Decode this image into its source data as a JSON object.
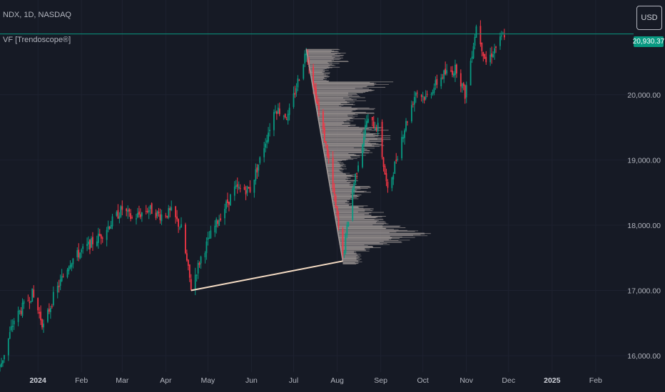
{
  "header": {
    "symbol_line": "NDX, 1D, NASDAQ",
    "indicator_line": "VF [Trendoscope®]"
  },
  "currency_button": "USD",
  "last_price_label": "20,930.37",
  "colors": {
    "background": "#161a25",
    "grid": "#1e2230",
    "up": "#089981",
    "down": "#f23645",
    "profile": "#a59d9b",
    "trend_line": "#f5dcc4",
    "last_price_line": "#089981",
    "axis_text": "#b2b5be"
  },
  "chart_data": {
    "type": "candlestick",
    "title": "NDX, 1D, NASDAQ",
    "y_axis": {
      "side": "right",
      "ticks": [
        "16,000.00",
        "17,000.00",
        "18,000.00",
        "19,000.00",
        "20,000.00"
      ],
      "tick_values": [
        16000,
        17000,
        18000,
        19000,
        20000
      ],
      "range": [
        15750,
        21450
      ]
    },
    "x_axis": {
      "ticks": [
        "2024",
        "Feb",
        "Mar",
        "Apr",
        "May",
        "Jun",
        "Jul",
        "Aug",
        "Sep",
        "Oct",
        "Nov",
        "Dec",
        "2025",
        "Feb"
      ],
      "tick_dates": [
        "2024-01-01",
        "2024-02-01",
        "2024-03-01",
        "2024-04-01",
        "2024-05-01",
        "2024-06-01",
        "2024-07-01",
        "2024-08-01",
        "2024-09-01",
        "2024-10-01",
        "2024-11-01",
        "2024-12-01",
        "2025-01-01",
        "2025-02-01"
      ],
      "range": [
        "2023-12-05",
        "2025-02-28"
      ]
    },
    "grid": true,
    "last_price": 20930.37,
    "price_path": [
      [
        "2023-12-05",
        15820
      ],
      [
        "2023-12-15",
        16550
      ],
      [
        "2023-12-28",
        16950
      ],
      [
        "2024-01-05",
        16450
      ],
      [
        "2024-01-12",
        16900
      ],
      [
        "2024-01-24",
        17450
      ],
      [
        "2024-02-01",
        17600
      ],
      [
        "2024-02-15",
        17850
      ],
      [
        "2024-03-01",
        18250
      ],
      [
        "2024-03-08",
        18100
      ],
      [
        "2024-03-20",
        18250
      ],
      [
        "2024-03-28",
        18150
      ],
      [
        "2024-04-05",
        18200
      ],
      [
        "2024-04-12",
        17950
      ],
      [
        "2024-04-19",
        17050
      ],
      [
        "2024-04-26",
        17500
      ],
      [
        "2024-05-03",
        17850
      ],
      [
        "2024-05-10",
        18150
      ],
      [
        "2024-05-20",
        18550
      ],
      [
        "2024-05-31",
        18550
      ],
      [
        "2024-06-07",
        19000
      ],
      [
        "2024-06-18",
        19800
      ],
      [
        "2024-06-27",
        19650
      ],
      [
        "2024-07-10",
        20680
      ],
      [
        "2024-07-18",
        19850
      ],
      [
        "2024-07-26",
        19000
      ],
      [
        "2024-08-05",
        17500
      ],
      [
        "2024-08-12",
        18550
      ],
      [
        "2024-08-22",
        19600
      ],
      [
        "2024-08-30",
        19500
      ],
      [
        "2024-09-06",
        18500
      ],
      [
        "2024-09-16",
        19350
      ],
      [
        "2024-09-26",
        20050
      ],
      [
        "2024-10-03",
        19950
      ],
      [
        "2024-10-15",
        20300
      ],
      [
        "2024-10-25",
        20400
      ],
      [
        "2024-10-31",
        20000
      ],
      [
        "2024-11-08",
        21050
      ],
      [
        "2024-11-15",
        20500
      ],
      [
        "2024-11-21",
        20700
      ],
      [
        "2024-11-28",
        20930
      ]
    ],
    "annotations": {
      "trend_line": [
        [
          "2024-04-19",
          17000
        ],
        [
          "2024-08-05",
          17450
        ]
      ],
      "profile_line": [
        [
          "2024-07-10",
          20700
        ],
        [
          "2024-08-05",
          17450
        ]
      ],
      "volume_profile": {
        "anchor_start": "2024-07-10",
        "anchor_end": "2024-08-05",
        "levels": [
          [
            20650,
            4
          ],
          [
            20550,
            4
          ],
          [
            20450,
            3
          ],
          [
            20350,
            2
          ],
          [
            20250,
            2
          ],
          [
            20150,
            8
          ],
          [
            20050,
            6
          ],
          [
            19950,
            5
          ],
          [
            19850,
            4
          ],
          [
            19750,
            6
          ],
          [
            19650,
            5
          ],
          [
            19550,
            4
          ],
          [
            19450,
            7
          ],
          [
            19350,
            7
          ],
          [
            19250,
            6
          ],
          [
            19150,
            5
          ],
          [
            19050,
            4
          ],
          [
            18950,
            2
          ],
          [
            18850,
            2
          ],
          [
            18750,
            3
          ],
          [
            18650,
            3
          ],
          [
            18550,
            4
          ],
          [
            18450,
            3
          ],
          [
            18350,
            2
          ],
          [
            18250,
            4
          ],
          [
            18150,
            5
          ],
          [
            18050,
            6
          ],
          [
            17950,
            8
          ],
          [
            17850,
            9
          ],
          [
            17750,
            7
          ],
          [
            17650,
            4
          ],
          [
            17550,
            2
          ],
          [
            17450,
            2
          ]
        ]
      }
    }
  }
}
